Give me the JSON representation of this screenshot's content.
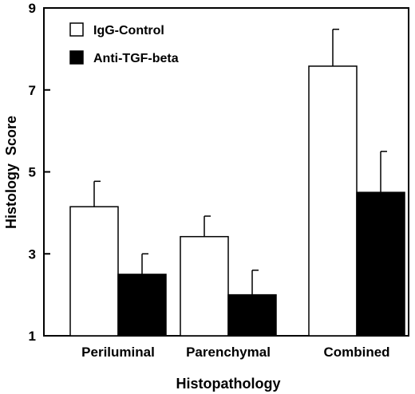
{
  "chart_data": {
    "type": "bar",
    "categories": [
      "Periluminal",
      "Parenchymal",
      "Combined"
    ],
    "series": [
      {
        "name": "IgG-Control",
        "values": [
          4.15,
          3.42,
          7.58
        ],
        "errors": [
          0.62,
          0.5,
          0.9
        ],
        "color": "#ffffff"
      },
      {
        "name": "Anti-TGF-beta",
        "values": [
          2.5,
          2.0,
          4.5
        ],
        "errors": [
          0.5,
          0.6,
          1.0
        ],
        "color": "#000000"
      }
    ],
    "title": "",
    "xlabel": "Histopathology",
    "ylabel": "Histology  Score",
    "ylim": [
      1,
      9
    ],
    "yticks": [
      1,
      3,
      5,
      7,
      9
    ],
    "legend_position": "top-left",
    "grid": false
  }
}
